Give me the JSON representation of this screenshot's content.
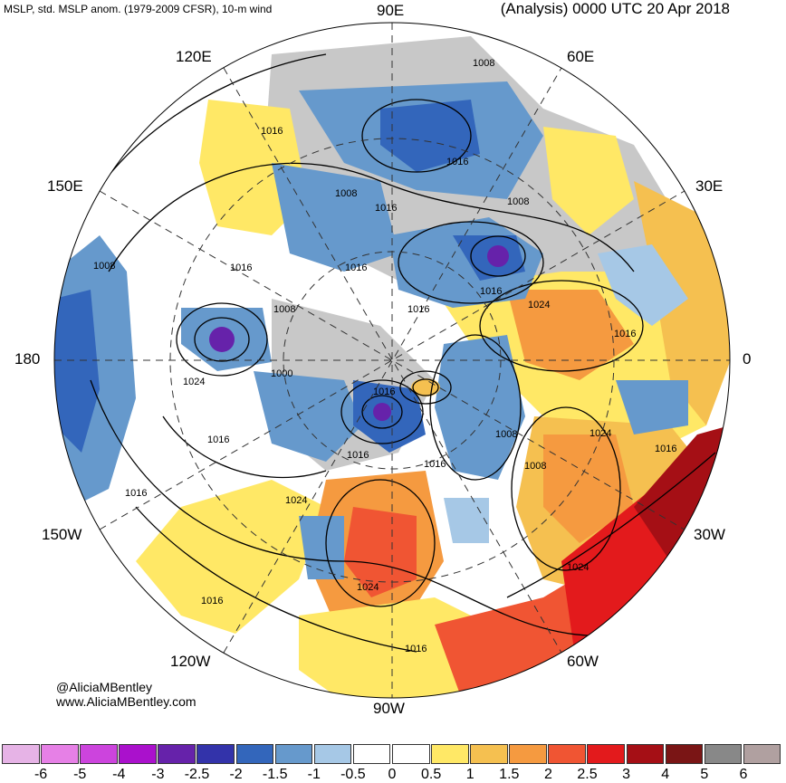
{
  "header": {
    "left_title": "MSLP, std. MSLP anom. (1979-2009 CFSR), 10-m wind",
    "right_title": "(Analysis) 0000 UTC 20 Apr 2018"
  },
  "longitude_labels": {
    "e90": "90E",
    "e60": "60E",
    "e120": "120E",
    "e150": "150E",
    "e30": "30E",
    "w180": "180",
    "zero": "0",
    "w150": "150W",
    "w30": "30W",
    "w120": "120W",
    "w60": "60W",
    "w90": "90W"
  },
  "isobar_labels": [
    "1008",
    "1016",
    "1016",
    "1008",
    "1008",
    "1016",
    "1008",
    "1016",
    "1016",
    "1016",
    "1008",
    "1016",
    "1024",
    "1000",
    "1016",
    "1024",
    "1016",
    "1016",
    "1008",
    "1024",
    "1016",
    "1016",
    "1016",
    "1008",
    "1016",
    "1024",
    "1024",
    "1024",
    "1016",
    "1016"
  ],
  "credits": {
    "handle": "@AliciaMBentley",
    "website": "www.AliciaMBentley.com"
  },
  "colorbar": {
    "colors": [
      "#e6b3e6",
      "#e680e6",
      "#cc44dd",
      "#aa11cc",
      "#6622aa",
      "#3333aa",
      "#3366bb",
      "#6699cc",
      "#a6c8e6",
      "#ffffff",
      "#ffffff",
      "#ffe866",
      "#f5c050",
      "#f59a40",
      "#f05533",
      "#e31a1c",
      "#a50f15",
      "#7a1515",
      "#888888",
      "#b0a0a0"
    ],
    "labels": [
      "-6",
      "-5",
      "-4",
      "-3",
      "-2.5",
      "-2",
      "-1.5",
      "-1",
      "-0.5",
      "0",
      "0.5",
      "1",
      "1.5",
      "2",
      "2.5",
      "3",
      "4",
      "5",
      "6"
    ]
  }
}
